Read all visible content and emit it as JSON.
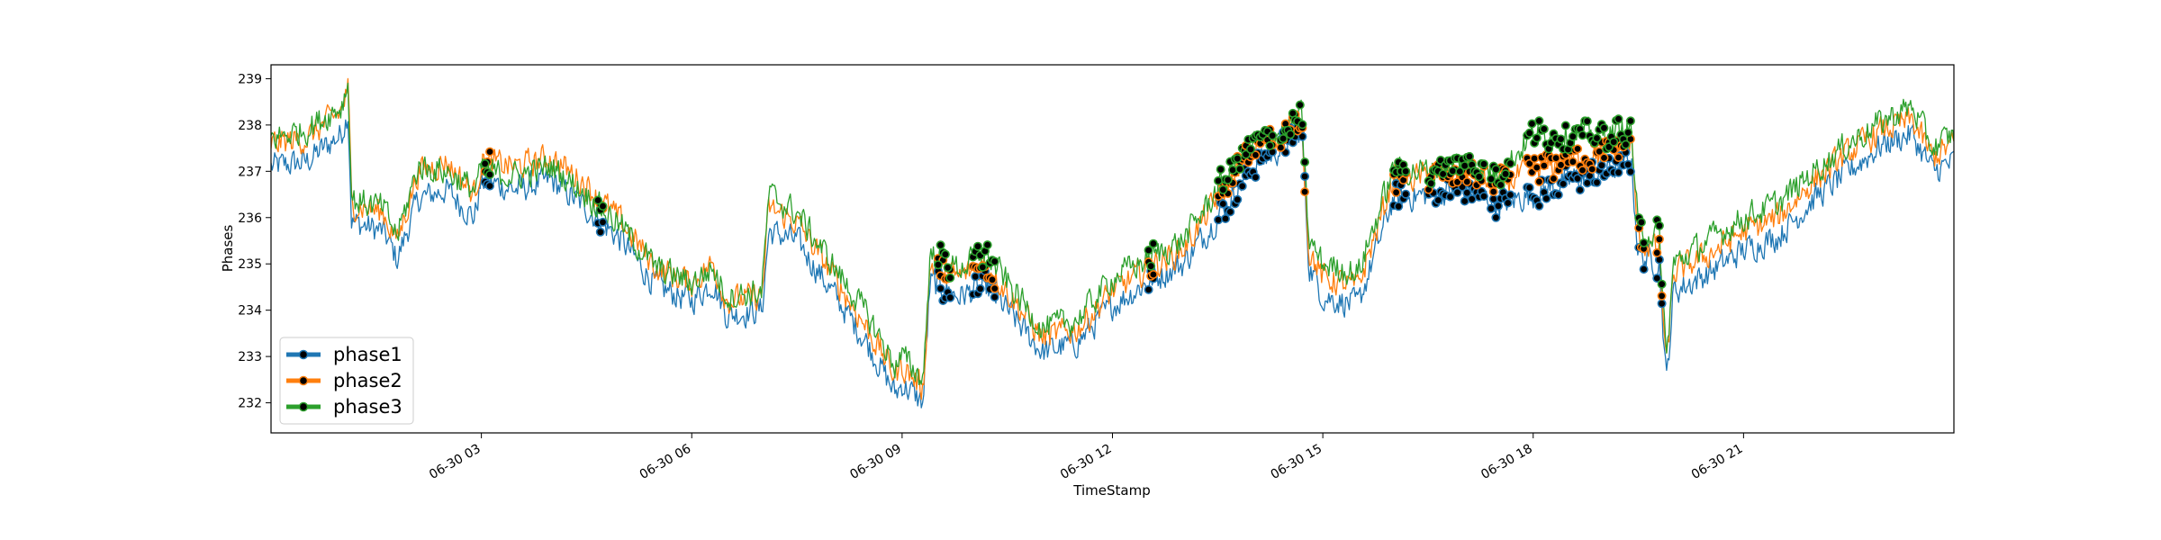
{
  "chart_data": {
    "type": "line",
    "title": "",
    "xlabel": "TimeStamp",
    "ylabel": "Phases",
    "xlim": [
      0,
      24
    ],
    "ylim": [
      231.35,
      239.3
    ],
    "x_ticks": [
      3,
      6,
      9,
      12,
      15,
      18,
      21
    ],
    "x_tick_labels": [
      "06-30 03",
      "06-30 06",
      "06-30 09",
      "06-30 12",
      "06-30 15",
      "06-30 18",
      "06-30 21"
    ],
    "y_ticks": [
      232,
      233,
      234,
      235,
      236,
      237,
      238,
      239
    ],
    "legend_position": "lower-left",
    "grid": false,
    "marker_color": "#000000",
    "series": [
      {
        "name": "phase1",
        "color": "#1f77b4",
        "x": [
          0,
          0.5,
          1.0,
          1.1,
          1.15,
          1.6,
          1.8,
          2.1,
          2.5,
          2.9,
          3.0,
          3.5,
          4.0,
          4.5,
          5.0,
          5.5,
          6.0,
          6.3,
          6.5,
          7.0,
          7.1,
          7.5,
          8.0,
          8.5,
          8.9,
          9.0,
          9.3,
          9.4,
          9.8,
          10.2,
          10.5,
          11.0,
          11.5,
          12.0,
          12.5,
          13.0,
          13.5,
          14.0,
          14.5,
          14.7,
          14.8,
          15.0,
          15.5,
          16.0,
          16.5,
          17.0,
          17.5,
          18.0,
          18.5,
          19.0,
          19.4,
          19.5,
          19.8,
          19.9,
          20.0,
          20.5,
          21.0,
          21.5,
          22.0,
          22.5,
          23.0,
          23.4,
          23.7,
          24.0
        ],
        "y": [
          237.1,
          237.2,
          237.8,
          238.3,
          235.9,
          235.7,
          235.1,
          236.4,
          236.6,
          236.0,
          236.8,
          236.6,
          236.8,
          236.2,
          235.5,
          234.5,
          234.2,
          234.6,
          233.9,
          234.0,
          235.7,
          235.5,
          234.4,
          233.3,
          232.2,
          232.4,
          232.0,
          234.6,
          234.3,
          234.5,
          234.0,
          233.1,
          233.3,
          234.1,
          234.6,
          235.0,
          236.0,
          237.1,
          237.6,
          237.9,
          235.0,
          234.3,
          234.1,
          236.4,
          236.5,
          236.6,
          236.3,
          236.5,
          236.8,
          237.0,
          237.2,
          235.2,
          235.0,
          232.4,
          234.4,
          234.8,
          235.3,
          235.6,
          236.4,
          237.0,
          237.6,
          237.8,
          237.0,
          237.2
        ]
      },
      {
        "name": "phase2",
        "color": "#ff7f0e",
        "x": [
          0,
          0.5,
          1.0,
          1.1,
          1.15,
          1.6,
          1.8,
          2.1,
          2.5,
          2.9,
          3.0,
          3.5,
          4.0,
          4.5,
          5.0,
          5.5,
          6.0,
          6.3,
          6.5,
          7.0,
          7.1,
          7.5,
          8.0,
          8.5,
          8.9,
          9.0,
          9.3,
          9.4,
          9.8,
          10.2,
          10.5,
          11.0,
          11.5,
          12.0,
          12.5,
          13.0,
          13.5,
          14.0,
          14.5,
          14.7,
          14.8,
          15.0,
          15.5,
          16.0,
          16.5,
          17.0,
          17.5,
          18.0,
          18.5,
          19.0,
          19.4,
          19.5,
          19.8,
          19.9,
          20.0,
          20.5,
          21.0,
          21.5,
          22.0,
          22.5,
          23.0,
          23.4,
          23.7,
          24.0
        ],
        "y": [
          237.6,
          237.7,
          238.3,
          238.8,
          236.3,
          236.1,
          235.5,
          237.0,
          237.2,
          236.5,
          237.2,
          237.1,
          237.3,
          236.7,
          235.9,
          234.9,
          234.6,
          235.0,
          234.2,
          234.3,
          236.2,
          235.9,
          234.8,
          233.6,
          232.6,
          232.8,
          232.3,
          235.0,
          234.7,
          235.0,
          234.4,
          233.4,
          233.6,
          234.4,
          234.9,
          235.3,
          236.4,
          237.5,
          237.9,
          238.1,
          235.3,
          234.7,
          234.5,
          236.8,
          236.9,
          237.0,
          236.7,
          237.0,
          237.2,
          237.4,
          237.6,
          235.5,
          235.3,
          232.7,
          234.8,
          235.2,
          235.7,
          236.0,
          236.8,
          237.4,
          237.9,
          238.1,
          237.3,
          237.6
        ]
      },
      {
        "name": "phase3",
        "color": "#2ca02c",
        "x": [
          0,
          0.5,
          1.0,
          1.1,
          1.15,
          1.6,
          1.8,
          2.1,
          2.5,
          2.9,
          3.0,
          3.5,
          4.0,
          4.5,
          5.0,
          5.5,
          6.0,
          6.3,
          6.5,
          7.0,
          7.1,
          7.5,
          8.0,
          8.5,
          8.9,
          9.0,
          9.3,
          9.4,
          9.8,
          10.2,
          10.5,
          11.0,
          11.5,
          12.0,
          12.5,
          13.0,
          13.5,
          14.0,
          14.5,
          14.7,
          14.8,
          15.0,
          15.5,
          16.0,
          16.5,
          17.0,
          17.5,
          18.0,
          18.5,
          19.0,
          19.4,
          19.5,
          19.8,
          19.9,
          20.0,
          20.5,
          21.0,
          21.5,
          22.0,
          22.5,
          23.0,
          23.4,
          23.7,
          24.0
        ],
        "y": [
          237.7,
          237.9,
          238.4,
          238.9,
          236.4,
          236.2,
          235.6,
          237.1,
          237.0,
          236.6,
          237.0,
          236.9,
          237.1,
          236.5,
          235.8,
          234.9,
          234.6,
          234.9,
          234.3,
          234.4,
          236.5,
          236.1,
          235.0,
          233.9,
          232.8,
          233.0,
          232.5,
          235.2,
          234.9,
          235.2,
          234.6,
          233.6,
          233.8,
          234.7,
          235.1,
          235.5,
          236.6,
          237.6,
          237.9,
          238.2,
          235.5,
          235.0,
          234.8,
          237.0,
          237.0,
          237.2,
          236.9,
          237.8,
          237.8,
          237.8,
          237.9,
          235.7,
          235.6,
          232.9,
          235.0,
          235.5,
          236.0,
          236.3,
          237.0,
          237.6,
          238.1,
          238.4,
          237.5,
          237.8
        ]
      }
    ],
    "marker_ranges": [
      [
        3.05,
        3.15
      ],
      [
        4.65,
        4.75
      ],
      [
        9.5,
        9.7
      ],
      [
        10.0,
        10.35
      ],
      [
        12.5,
        12.6
      ],
      [
        13.5,
        13.9
      ],
      [
        13.9,
        14.3
      ],
      [
        14.4,
        14.75
      ],
      [
        16.0,
        16.2
      ],
      [
        16.5,
        17.3
      ],
      [
        17.4,
        17.7
      ],
      [
        17.9,
        19.4
      ],
      [
        19.5,
        19.6
      ],
      [
        19.75,
        19.85
      ]
    ]
  }
}
